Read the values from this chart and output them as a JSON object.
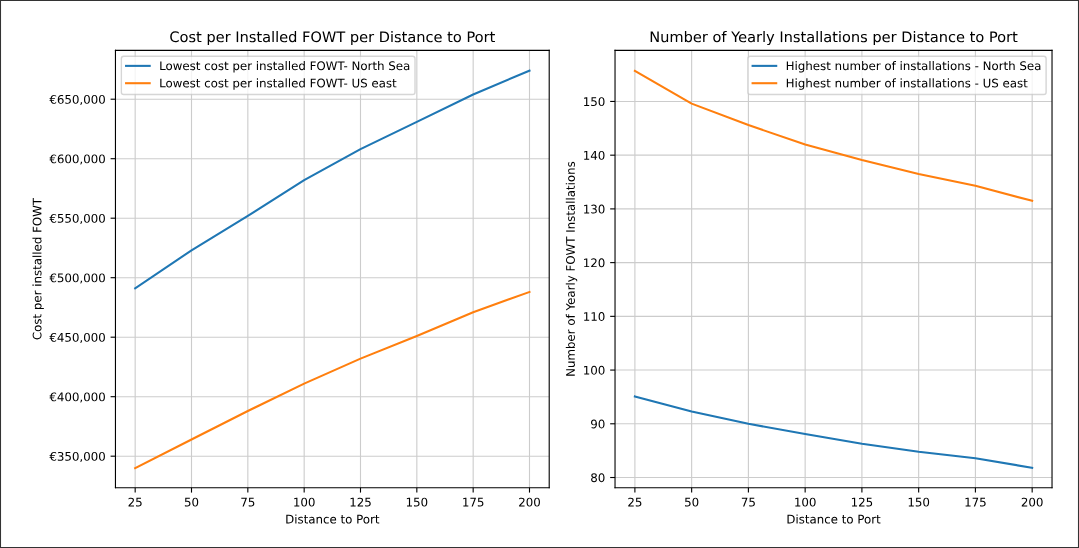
{
  "chart_data": [
    {
      "type": "line",
      "title": "Cost per Installed FOWT per Distance to Port",
      "xlabel": "Distance to Port",
      "ylabel": "Cost per installed FOWT",
      "x": [
        25,
        50,
        75,
        100,
        125,
        150,
        175,
        200
      ],
      "series": [
        {
          "name": "Lowest cost per installed FOWT- North Sea",
          "color": "#1f77b4",
          "values": [
            491000,
            523000,
            552000,
            582000,
            608000,
            631000,
            654000,
            674000
          ]
        },
        {
          "name": "Lowest cost per installed FOWT- US east",
          "color": "#ff7f0e",
          "values": [
            340000,
            364000,
            388000,
            411000,
            432000,
            451000,
            471000,
            488000
          ]
        }
      ],
      "xlim": [
        16.25,
        208.75
      ],
      "xticks": [
        25,
        50,
        75,
        100,
        125,
        150,
        175,
        200
      ],
      "ylim": [
        323500,
        691000
      ],
      "yticks": [
        {
          "value": 350000,
          "label": "€350,000"
        },
        {
          "value": 400000,
          "label": "€400,000"
        },
        {
          "value": 450000,
          "label": "€450,000"
        },
        {
          "value": 500000,
          "label": "€500,000"
        },
        {
          "value": 550000,
          "label": "€550,000"
        },
        {
          "value": 600000,
          "label": "€600,000"
        },
        {
          "value": 650000,
          "label": "€650,000"
        }
      ],
      "grid": true,
      "legend": "top left"
    },
    {
      "type": "line",
      "title": "Number of Yearly Installations per Distance to Port",
      "xlabel": "Distance to Port",
      "ylabel": "Number of Yearly FOWT Installations",
      "x": [
        25,
        50,
        75,
        100,
        125,
        150,
        175,
        200
      ],
      "series": [
        {
          "name": "Highest number of installations - North Sea",
          "color": "#1f77b4",
          "values": [
            95.1,
            92.3,
            90.0,
            88.1,
            86.3,
            84.8,
            83.6,
            81.8
          ]
        },
        {
          "name": "Highest number of installations - US east",
          "color": "#ff7f0e",
          "values": [
            155.7,
            149.6,
            145.6,
            142.0,
            139.1,
            136.5,
            134.3,
            131.5
          ]
        }
      ],
      "xlim": [
        16.25,
        208.75
      ],
      "xticks": [
        25,
        50,
        75,
        100,
        125,
        150,
        175,
        200
      ],
      "ylim": [
        78.1,
        159.5
      ],
      "yticks": [
        80,
        90,
        100,
        110,
        120,
        130,
        140,
        150
      ],
      "grid": true,
      "legend": "top right"
    }
  ]
}
